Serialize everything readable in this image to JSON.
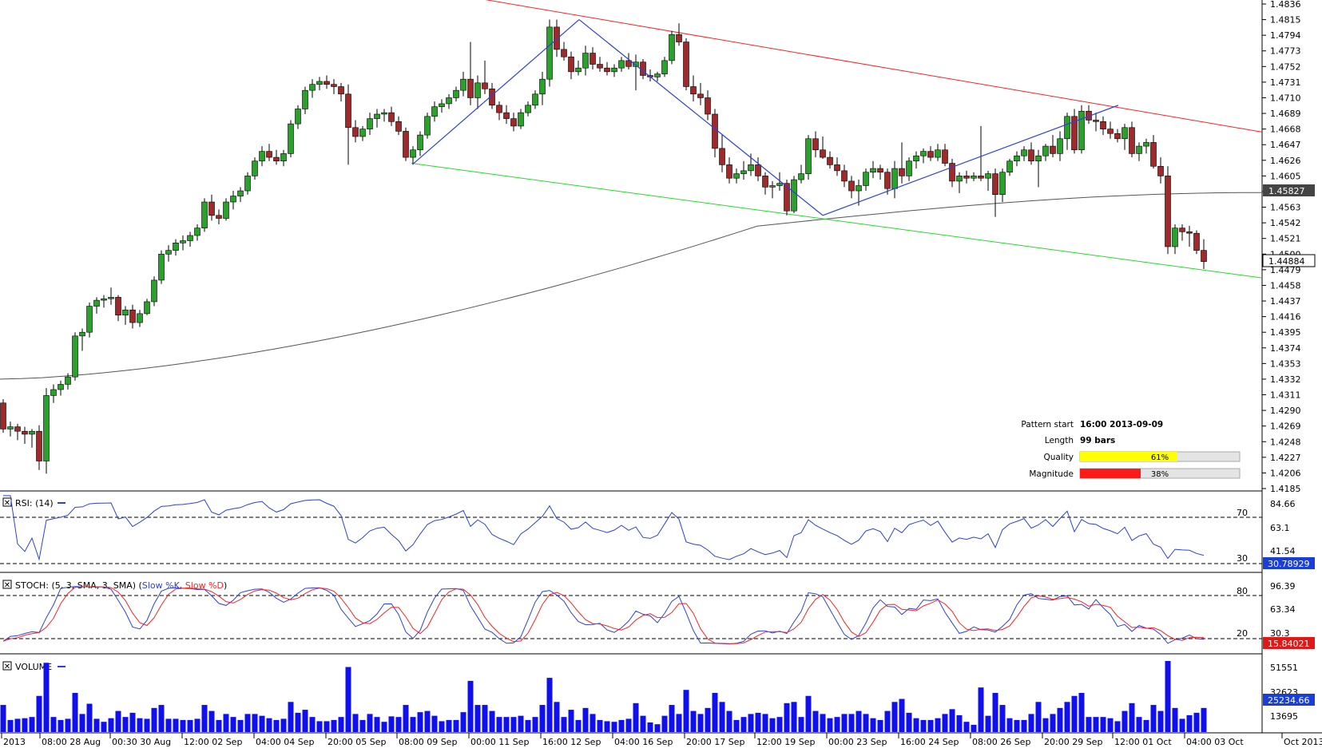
{
  "colors": {
    "bull": "#2ca02c",
    "bear": "#9e2a2b",
    "ma": "#555555",
    "upper_line": "#ff2020",
    "lower_line": "#22dd22",
    "zigzag": "#2b3fe6",
    "rsi": "#2b3fe6",
    "stoch_k": "#2b3fe6",
    "stoch_d": "#ff2020",
    "volume": "#1010ee",
    "quality_fill": "#ffff00",
    "magnitude_fill": "#ff1a1a",
    "rsi_badge": "#1a3fd9",
    "stoch_badge": "#e01818",
    "volume_badge": "#1a3fd9"
  },
  "price_axis": {
    "labels": [
      "1.4836",
      "1.4815",
      "1.4794",
      "1.4773",
      "1.4752",
      "1.4731",
      "1.4710",
      "1.4689",
      "1.4668",
      "1.4647",
      "1.4626",
      "1.4605",
      "1.4584",
      "1.4563",
      "1.4542",
      "1.4521",
      "1.4500",
      "1.4479",
      "1.4458",
      "1.4437",
      "1.4416",
      "1.4395",
      "1.4374",
      "1.4353",
      "1.4332",
      "1.4311",
      "1.4290",
      "1.4269",
      "1.4248",
      "1.4227",
      "1.4206",
      "1.4185"
    ],
    "ma_badge": "1.45827",
    "price_badge": "1.44884"
  },
  "time_axis": {
    "labels": [
      "2013",
      "08:00 28 Aug",
      "00:30 30 Aug",
      "12:00 02 Sep",
      "04:00 04 Sep",
      "20:00 05 Sep",
      "08:00 09 Sep",
      "00:00 11 Sep",
      "16:00 12 Sep",
      "04:00 16 Sep",
      "20:00 17 Sep",
      "12:00 19 Sep",
      "00:00 23 Sep",
      "16:00 24 Sep",
      "08:00 26 Sep",
      "20:00 29 Sep",
      "12:00 01 Oct",
      "04:00 03 Oct",
      "Oct 2013"
    ]
  },
  "pattern_info": {
    "start_label": "Pattern start",
    "start_value": "16:00 2013-09-09",
    "length_label": "Length",
    "length_value": "99 bars",
    "quality_label": "Quality",
    "quality_value": "61%",
    "quality_pct": 61,
    "magnitude_label": "Magnitude",
    "magnitude_value": "38%",
    "magnitude_pct": 38
  },
  "rsi_panel": {
    "title": "RSI: (14)",
    "axis_labels": [
      "84.66",
      "63.1",
      "41.54"
    ],
    "level_high": "70",
    "level_low": "30",
    "badge": "30.78929"
  },
  "stoch_panel": {
    "title_prefix": "STOCH: (5, 3, SMA, 3, SMA)",
    "k_label": "Slow %K",
    "d_label": "Slow %D",
    "axis_labels": [
      "96.39",
      "63.34",
      "30.3"
    ],
    "level_high": "80",
    "level_low": "20",
    "badge": "15.84021"
  },
  "volume_panel": {
    "title": "VOLUME",
    "axis_labels": [
      "51551",
      "32623",
      "13695"
    ],
    "badge": "25234.66"
  },
  "chart_data": {
    "type": "candlestick",
    "symbol": "",
    "price_range": [
      1.4185,
      1.4836
    ],
    "candles": [
      [
        1.43,
        1.4305,
        1.426,
        1.4265
      ],
      [
        1.4265,
        1.4275,
        1.4255,
        1.4268
      ],
      [
        1.4268,
        1.4272,
        1.425,
        1.4262
      ],
      [
        1.4262,
        1.4268,
        1.4245,
        1.4258
      ],
      [
        1.4258,
        1.4265,
        1.424,
        1.4262
      ],
      [
        1.4262,
        1.427,
        1.421,
        1.4222
      ],
      [
        1.4222,
        1.432,
        1.4205,
        1.431
      ],
      [
        1.431,
        1.4325,
        1.43,
        1.4318
      ],
      [
        1.4318,
        1.433,
        1.431,
        1.4325
      ],
      [
        1.4325,
        1.434,
        1.4318,
        1.4335
      ],
      [
        1.4335,
        1.4395,
        1.433,
        1.439
      ],
      [
        1.439,
        1.44,
        1.437,
        1.4395
      ],
      [
        1.4395,
        1.4435,
        1.4388,
        1.443
      ],
      [
        1.443,
        1.4442,
        1.442,
        1.4438
      ],
      [
        1.4438,
        1.4445,
        1.4428,
        1.444
      ],
      [
        1.444,
        1.4455,
        1.4432,
        1.4442
      ],
      [
        1.4442,
        1.4445,
        1.441,
        1.4418
      ],
      [
        1.4418,
        1.443,
        1.4405,
        1.4425
      ],
      [
        1.4425,
        1.4432,
        1.44,
        1.4408
      ],
      [
        1.4408,
        1.4425,
        1.4402,
        1.442
      ],
      [
        1.442,
        1.444,
        1.4418,
        1.4436
      ],
      [
        1.4436,
        1.447,
        1.443,
        1.4465
      ],
      [
        1.4465,
        1.4505,
        1.446,
        1.45
      ],
      [
        1.45,
        1.4512,
        1.449,
        1.4505
      ],
      [
        1.4505,
        1.452,
        1.4498,
        1.4515
      ],
      [
        1.4515,
        1.4525,
        1.4505,
        1.4518
      ],
      [
        1.4518,
        1.453,
        1.451,
        1.4525
      ],
      [
        1.4525,
        1.454,
        1.4518,
        1.4535
      ],
      [
        1.4535,
        1.4575,
        1.453,
        1.457
      ],
      [
        1.457,
        1.458,
        1.4545,
        1.4552
      ],
      [
        1.4552,
        1.456,
        1.454,
        1.4548
      ],
      [
        1.4548,
        1.4575,
        1.4545,
        1.457
      ],
      [
        1.457,
        1.4585,
        1.456,
        1.4578
      ],
      [
        1.4578,
        1.459,
        1.457,
        1.4585
      ],
      [
        1.4585,
        1.461,
        1.458,
        1.4605
      ],
      [
        1.4605,
        1.463,
        1.46,
        1.4625
      ],
      [
        1.4625,
        1.4645,
        1.4618,
        1.4638
      ],
      [
        1.4638,
        1.4648,
        1.4625,
        1.463
      ],
      [
        1.463,
        1.464,
        1.462,
        1.4625
      ],
      [
        1.4625,
        1.464,
        1.4618,
        1.4635
      ],
      [
        1.4635,
        1.468,
        1.463,
        1.4675
      ],
      [
        1.4675,
        1.47,
        1.4668,
        1.4695
      ],
      [
        1.4695,
        1.4725,
        1.4688,
        1.472
      ],
      [
        1.472,
        1.4735,
        1.471,
        1.4728
      ],
      [
        1.4728,
        1.4738,
        1.472,
        1.4732
      ],
      [
        1.4732,
        1.474,
        1.4722,
        1.4728
      ],
      [
        1.4728,
        1.4735,
        1.4715,
        1.4725
      ],
      [
        1.4725,
        1.473,
        1.4705,
        1.4715
      ],
      [
        1.4715,
        1.4728,
        1.462,
        1.467
      ],
      [
        1.467,
        1.468,
        1.465,
        1.4658
      ],
      [
        1.4658,
        1.4672,
        1.4652,
        1.4668
      ],
      [
        1.4668,
        1.469,
        1.466,
        1.4682
      ],
      [
        1.4682,
        1.4695,
        1.467,
        1.4688
      ],
      [
        1.4688,
        1.4695,
        1.4678,
        1.469
      ],
      [
        1.469,
        1.4698,
        1.4672,
        1.4678
      ],
      [
        1.4678,
        1.4685,
        1.466,
        1.4665
      ],
      [
        1.4665,
        1.467,
        1.4625,
        1.463
      ],
      [
        1.463,
        1.4645,
        1.462,
        1.464
      ],
      [
        1.464,
        1.4665,
        1.4632,
        1.466
      ],
      [
        1.466,
        1.469,
        1.4655,
        1.4685
      ],
      [
        1.4685,
        1.4705,
        1.4678,
        1.4698
      ],
      [
        1.4698,
        1.4708,
        1.469,
        1.4702
      ],
      [
        1.4702,
        1.4715,
        1.4695,
        1.471
      ],
      [
        1.471,
        1.4725,
        1.4705,
        1.472
      ],
      [
        1.472,
        1.4745,
        1.4712,
        1.4735
      ],
      [
        1.4735,
        1.4785,
        1.47,
        1.471
      ],
      [
        1.471,
        1.474,
        1.4695,
        1.473
      ],
      [
        1.473,
        1.476,
        1.4715,
        1.4722
      ],
      [
        1.4722,
        1.473,
        1.4695,
        1.47
      ],
      [
        1.47,
        1.4705,
        1.468,
        1.469
      ],
      [
        1.469,
        1.47,
        1.4675,
        1.4682
      ],
      [
        1.4682,
        1.469,
        1.4665,
        1.4672
      ],
      [
        1.4672,
        1.4695,
        1.4668,
        1.469
      ],
      [
        1.469,
        1.4705,
        1.4685,
        1.47
      ],
      [
        1.47,
        1.472,
        1.4695,
        1.4715
      ],
      [
        1.4715,
        1.4745,
        1.47,
        1.4735
      ],
      [
        1.4735,
        1.4815,
        1.4725,
        1.4805
      ],
      [
        1.4805,
        1.4815,
        1.4765,
        1.4775
      ],
      [
        1.4775,
        1.4785,
        1.476,
        1.4765
      ],
      [
        1.4765,
        1.4772,
        1.4735,
        1.4745
      ],
      [
        1.4745,
        1.476,
        1.474,
        1.475
      ],
      [
        1.475,
        1.478,
        1.474,
        1.477
      ],
      [
        1.477,
        1.4778,
        1.4748,
        1.4755
      ],
      [
        1.4755,
        1.4765,
        1.4745,
        1.475
      ],
      [
        1.475,
        1.4758,
        1.474,
        1.4745
      ],
      [
        1.4745,
        1.4755,
        1.4738,
        1.475
      ],
      [
        1.475,
        1.4765,
        1.4745,
        1.476
      ],
      [
        1.476,
        1.477,
        1.4748,
        1.4752
      ],
      [
        1.4752,
        1.4768,
        1.472,
        1.4758
      ],
      [
        1.4758,
        1.4762,
        1.4735,
        1.474
      ],
      [
        1.474,
        1.4748,
        1.4732,
        1.4738
      ],
      [
        1.4738,
        1.4745,
        1.4732,
        1.4742
      ],
      [
        1.4742,
        1.4765,
        1.4738,
        1.476
      ],
      [
        1.476,
        1.48,
        1.4755,
        1.4795
      ],
      [
        1.4795,
        1.481,
        1.478,
        1.4785
      ],
      [
        1.4785,
        1.479,
        1.472,
        1.4725
      ],
      [
        1.4725,
        1.474,
        1.4705,
        1.4715
      ],
      [
        1.4715,
        1.473,
        1.47,
        1.471
      ],
      [
        1.471,
        1.472,
        1.468,
        1.4688
      ],
      [
        1.4688,
        1.4695,
        1.463,
        1.4642
      ],
      [
        1.4642,
        1.466,
        1.461,
        1.462
      ],
      [
        1.462,
        1.463,
        1.4595,
        1.4602
      ],
      [
        1.4602,
        1.4615,
        1.4595,
        1.4608
      ],
      [
        1.4608,
        1.4625,
        1.46,
        1.4612
      ],
      [
        1.4612,
        1.4635,
        1.4605,
        1.462
      ],
      [
        1.462,
        1.463,
        1.4598,
        1.4605
      ],
      [
        1.4605,
        1.461,
        1.458,
        1.459
      ],
      [
        1.459,
        1.4598,
        1.4575,
        1.4592
      ],
      [
        1.4592,
        1.461,
        1.4585,
        1.4595
      ],
      [
        1.4595,
        1.46,
        1.4552,
        1.4558
      ],
      [
        1.4558,
        1.4605,
        1.4555,
        1.46
      ],
      [
        1.46,
        1.462,
        1.4595,
        1.4608
      ],
      [
        1.4608,
        1.466,
        1.46,
        1.4655
      ],
      [
        1.4655,
        1.4665,
        1.463,
        1.464
      ],
      [
        1.464,
        1.4658,
        1.4628,
        1.463
      ],
      [
        1.463,
        1.4638,
        1.4615,
        1.462
      ],
      [
        1.462,
        1.463,
        1.4605,
        1.4612
      ],
      [
        1.4612,
        1.462,
        1.459,
        1.4598
      ],
      [
        1.4598,
        1.4605,
        1.4575,
        1.4585
      ],
      [
        1.4585,
        1.46,
        1.4565,
        1.4592
      ],
      [
        1.4592,
        1.4615,
        1.4585,
        1.461
      ],
      [
        1.461,
        1.4625,
        1.4602,
        1.4615
      ],
      [
        1.4615,
        1.462,
        1.46,
        1.461
      ],
      [
        1.461,
        1.4615,
        1.458,
        1.4588
      ],
      [
        1.4588,
        1.4625,
        1.4575,
        1.4615
      ],
      [
        1.4615,
        1.465,
        1.4595,
        1.4605
      ],
      [
        1.4605,
        1.463,
        1.4598,
        1.4625
      ],
      [
        1.4625,
        1.4638,
        1.4615,
        1.4632
      ],
      [
        1.4632,
        1.4642,
        1.4622,
        1.4638
      ],
      [
        1.4638,
        1.4645,
        1.4625,
        1.463
      ],
      [
        1.463,
        1.4648,
        1.4625,
        1.464
      ],
      [
        1.464,
        1.4648,
        1.4618,
        1.4622
      ],
      [
        1.4622,
        1.4628,
        1.459,
        1.4598
      ],
      [
        1.4598,
        1.461,
        1.4582,
        1.4605
      ],
      [
        1.4605,
        1.4612,
        1.4595,
        1.4602
      ],
      [
        1.4602,
        1.461,
        1.4598,
        1.4605
      ],
      [
        1.4605,
        1.4672,
        1.4598,
        1.4602
      ],
      [
        1.4602,
        1.4612,
        1.4585,
        1.4608
      ],
      [
        1.4608,
        1.4615,
        1.455,
        1.458
      ],
      [
        1.458,
        1.4615,
        1.457,
        1.461
      ],
      [
        1.461,
        1.4628,
        1.4605,
        1.4625
      ],
      [
        1.4625,
        1.4638,
        1.4618,
        1.4632
      ],
      [
        1.4632,
        1.4645,
        1.4625,
        1.464
      ],
      [
        1.464,
        1.465,
        1.462,
        1.4625
      ],
      [
        1.4625,
        1.464,
        1.459,
        1.4632
      ],
      [
        1.4632,
        1.4648,
        1.4625,
        1.4645
      ],
      [
        1.4645,
        1.466,
        1.463,
        1.4635
      ],
      [
        1.4635,
        1.4665,
        1.4625,
        1.4655
      ],
      [
        1.4655,
        1.469,
        1.464,
        1.4685
      ],
      [
        1.4685,
        1.4695,
        1.4635,
        1.464
      ],
      [
        1.464,
        1.47,
        1.4635,
        1.4692
      ],
      [
        1.4692,
        1.47,
        1.4675,
        1.468
      ],
      [
        1.468,
        1.469,
        1.4665,
        1.4678
      ],
      [
        1.4678,
        1.4685,
        1.466,
        1.4668
      ],
      [
        1.4668,
        1.4678,
        1.4655,
        1.4662
      ],
      [
        1.4662,
        1.4668,
        1.465,
        1.4655
      ],
      [
        1.4655,
        1.4675,
        1.464,
        1.467
      ],
      [
        1.467,
        1.4678,
        1.463,
        1.4635
      ],
      [
        1.4635,
        1.465,
        1.4625,
        1.4645
      ],
      [
        1.4645,
        1.4655,
        1.4635,
        1.465
      ],
      [
        1.465,
        1.466,
        1.4615,
        1.4618
      ],
      [
        1.4618,
        1.463,
        1.4595,
        1.4605
      ],
      [
        1.4605,
        1.4618,
        1.45,
        1.451
      ],
      [
        1.451,
        1.454,
        1.45,
        1.4535
      ],
      [
        1.4535,
        1.454,
        1.4518,
        1.453
      ],
      [
        1.453,
        1.4538,
        1.451,
        1.4528
      ],
      [
        1.4528,
        1.4532,
        1.45,
        1.4505
      ],
      [
        1.4505,
        1.452,
        1.448,
        1.449
      ]
    ],
    "moving_average_end": 1.45827,
    "last_price": 1.44884,
    "rsi_last": 30.78929,
    "stoch_last": 15.84021,
    "volume_last": 25234.66
  }
}
